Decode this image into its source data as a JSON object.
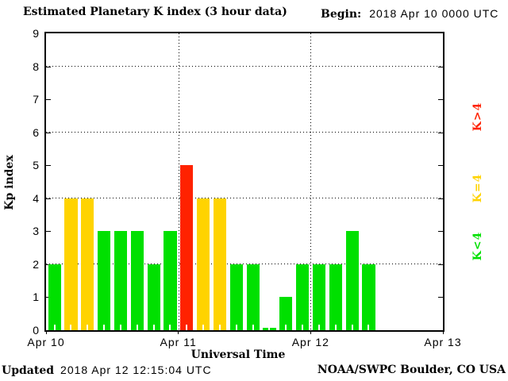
{
  "title": "Estimated Planetary K index (3 hour data)",
  "begin": {
    "label": "Begin:",
    "value": "2018 Apr 10 0000 UTC"
  },
  "footer": {
    "updated_label": "Updated",
    "updated_value": "2018 Apr 12 12:15:04 UTC",
    "credit": "NOAA/SWPC Boulder, CO USA"
  },
  "chart_data": {
    "type": "bar",
    "title": "Estimated Planetary K index (3 hour data)",
    "xlabel": "Universal Time",
    "ylabel": "Kp index",
    "ylim": [
      0,
      9
    ],
    "yticks": [
      0,
      1,
      2,
      3,
      4,
      5,
      6,
      7,
      8,
      9
    ],
    "gridlines_y": [
      2,
      4,
      6,
      8
    ],
    "grid_vertical_days": [
      1,
      2
    ],
    "hours_per_bar": 3,
    "slots_per_day": 8,
    "x_day_labels": [
      "Apr 10",
      "Apr 11",
      "Apr 12",
      "Apr 13"
    ],
    "categories": [
      "Apr 10 00-03",
      "Apr 10 03-06",
      "Apr 10 06-09",
      "Apr 10 09-12",
      "Apr 10 12-15",
      "Apr 10 15-18",
      "Apr 10 18-21",
      "Apr 10 21-24",
      "Apr 11 00-03",
      "Apr 11 03-06",
      "Apr 11 06-09",
      "Apr 11 09-12",
      "Apr 11 12-15",
      "Apr 11 15-18",
      "Apr 11 18-21",
      "Apr 11 21-24",
      "Apr 12 00-03",
      "Apr 12 03-06",
      "Apr 12 06-09",
      "Apr 12 09-12"
    ],
    "values": [
      2,
      4,
      4,
      3,
      3,
      3,
      2,
      3,
      5,
      4,
      4,
      2,
      2,
      0,
      1,
      2,
      2,
      2,
      3,
      2
    ],
    "bar_colors": [
      "green",
      "yellow",
      "yellow",
      "green",
      "green",
      "green",
      "green",
      "green",
      "red",
      "yellow",
      "yellow",
      "green",
      "green",
      "green",
      "green",
      "green",
      "green",
      "green",
      "green",
      "green"
    ],
    "colors": {
      "green": "#00e000",
      "yellow": "#ffd300",
      "red": "#ff2200"
    },
    "legend": [
      {
        "label": "K>4",
        "color_key": "red"
      },
      {
        "label": "K=4",
        "color_key": "yellow"
      },
      {
        "label": "K<4",
        "color_key": "green"
      }
    ],
    "legend_position": "right-rotated"
  }
}
